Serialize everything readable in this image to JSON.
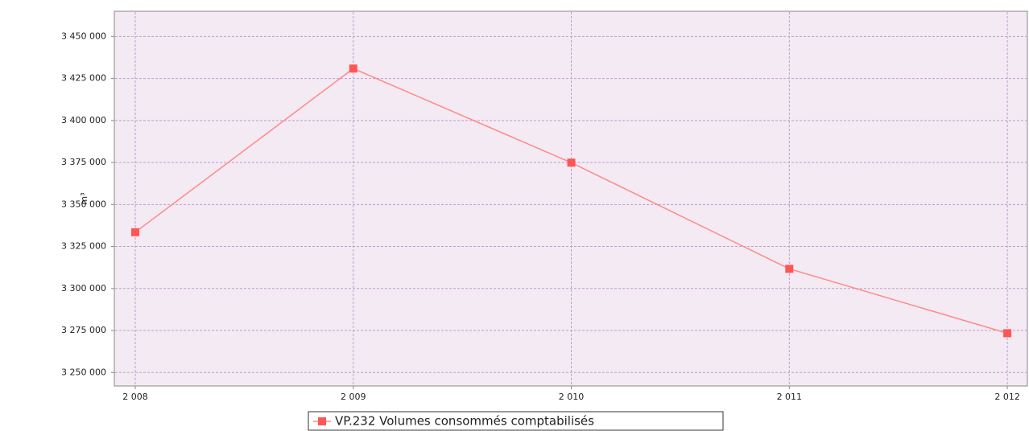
{
  "chart_data": {
    "type": "line",
    "y_label": "m³",
    "x": [
      2008,
      2009,
      2010,
      2011,
      2012
    ],
    "series": [
      {
        "name": "VP.232 Volumes consommés comptabilisés",
        "color": "#ff5555",
        "values": [
          3333500,
          3430900,
          3374900,
          3311700,
          3273400
        ]
      }
    ],
    "xlim": [
      2007.904,
      2012.092
    ],
    "xticks": [
      {
        "value": 2008,
        "label": "2 008"
      },
      {
        "value": 2009,
        "label": "2 009"
      },
      {
        "value": 2010,
        "label": "2 010"
      },
      {
        "value": 2011,
        "label": "2 011"
      },
      {
        "value": 2012,
        "label": "2 012"
      }
    ],
    "ylim": [
      3242000,
      3465000
    ],
    "yticks": [
      {
        "value": 3250000,
        "label": "3 250 000"
      },
      {
        "value": 3275000,
        "label": "3 275 000"
      },
      {
        "value": 3300000,
        "label": "3 300 000"
      },
      {
        "value": 3325000,
        "label": "3 325 000"
      },
      {
        "value": 3350000,
        "label": "3 350 000"
      },
      {
        "value": 3375000,
        "label": "3 375 000"
      },
      {
        "value": 3400000,
        "label": "3 400 000"
      },
      {
        "value": 3425000,
        "label": "3 425 000"
      },
      {
        "value": 3450000,
        "label": "3 450 000"
      }
    ],
    "grid": true,
    "legend": "bottom"
  }
}
